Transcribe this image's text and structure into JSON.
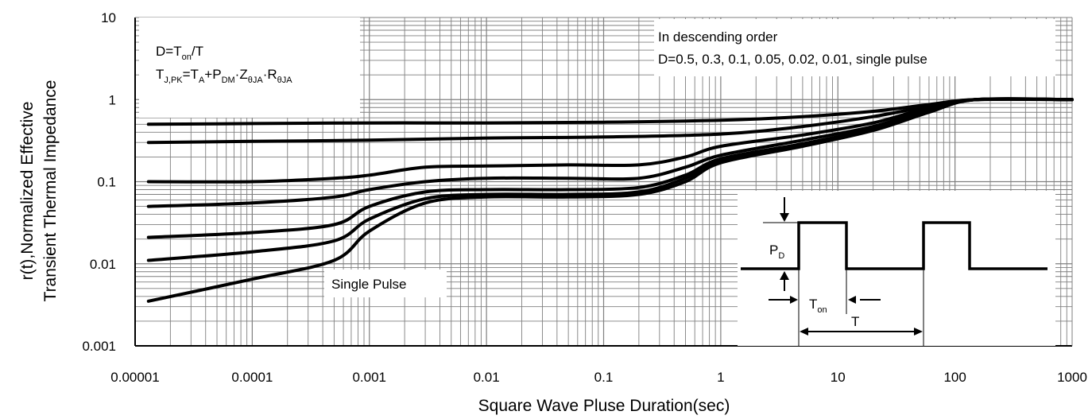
{
  "chart_data": {
    "type": "line",
    "title": "",
    "xlabel": "Square Wave Pluse Duration(sec)",
    "ylabel_lines": [
      "r(t),Normalized Effective",
      "Transient Thermal Impedance"
    ],
    "xscale": "log",
    "yscale": "log",
    "xlim": [
      1e-05,
      1000
    ],
    "ylim": [
      0.001,
      10
    ],
    "x_ticks": [
      "0.00001",
      "0.0001",
      "0.001",
      "0.01",
      "0.1",
      "1",
      "10",
      "100",
      "1000"
    ],
    "y_ticks": [
      "0.001",
      "0.01",
      "0.1",
      "1",
      "10"
    ],
    "grid": true,
    "series": [
      {
        "points": [
          [
            1.3e-05,
            0.5
          ],
          [
            0.0001,
            0.51
          ],
          [
            0.001,
            0.52
          ],
          [
            0.01,
            0.52
          ],
          [
            0.1,
            0.53
          ],
          [
            1,
            0.56
          ],
          [
            5,
            0.62
          ],
          [
            20,
            0.72
          ],
          [
            60,
            0.87
          ],
          [
            150,
            1.0
          ],
          [
            1000,
            1.0
          ]
        ]
      },
      {
        "points": [
          [
            1.3e-05,
            0.3
          ],
          [
            0.0001,
            0.31
          ],
          [
            0.001,
            0.32
          ],
          [
            0.01,
            0.34
          ],
          [
            0.1,
            0.35
          ],
          [
            1,
            0.38
          ],
          [
            5,
            0.47
          ],
          [
            20,
            0.62
          ],
          [
            60,
            0.83
          ],
          [
            150,
            1.0
          ],
          [
            1000,
            1.0
          ]
        ]
      },
      {
        "points": [
          [
            1.3e-05,
            0.1
          ],
          [
            0.0001,
            0.1
          ],
          [
            0.0005,
            0.11
          ],
          [
            0.001,
            0.12
          ],
          [
            0.003,
            0.15
          ],
          [
            0.01,
            0.155
          ],
          [
            0.05,
            0.16
          ],
          [
            0.2,
            0.16
          ],
          [
            0.5,
            0.2
          ],
          [
            1,
            0.27
          ],
          [
            5,
            0.37
          ],
          [
            20,
            0.52
          ],
          [
            60,
            0.8
          ],
          [
            150,
            1.0
          ],
          [
            1000,
            1.0
          ]
        ]
      },
      {
        "points": [
          [
            1.3e-05,
            0.05
          ],
          [
            0.0001,
            0.055
          ],
          [
            0.0005,
            0.065
          ],
          [
            0.001,
            0.08
          ],
          [
            0.003,
            0.1
          ],
          [
            0.01,
            0.11
          ],
          [
            0.05,
            0.11
          ],
          [
            0.2,
            0.11
          ],
          [
            0.5,
            0.15
          ],
          [
            1,
            0.21
          ],
          [
            5,
            0.32
          ],
          [
            20,
            0.47
          ],
          [
            60,
            0.76
          ],
          [
            150,
            1.0
          ],
          [
            1000,
            1.0
          ]
        ]
      },
      {
        "points": [
          [
            1.3e-05,
            0.021
          ],
          [
            0.0001,
            0.024
          ],
          [
            0.0005,
            0.03
          ],
          [
            0.001,
            0.05
          ],
          [
            0.003,
            0.075
          ],
          [
            0.01,
            0.08
          ],
          [
            0.05,
            0.08
          ],
          [
            0.2,
            0.085
          ],
          [
            0.5,
            0.12
          ],
          [
            1,
            0.19
          ],
          [
            5,
            0.29
          ],
          [
            20,
            0.44
          ],
          [
            60,
            0.74
          ],
          [
            150,
            1.0
          ],
          [
            1000,
            1.0
          ]
        ]
      },
      {
        "points": [
          [
            1.3e-05,
            0.011
          ],
          [
            0.0001,
            0.014
          ],
          [
            0.0005,
            0.019
          ],
          [
            0.001,
            0.035
          ],
          [
            0.003,
            0.062
          ],
          [
            0.01,
            0.07
          ],
          [
            0.05,
            0.07
          ],
          [
            0.2,
            0.075
          ],
          [
            0.5,
            0.11
          ],
          [
            1,
            0.18
          ],
          [
            5,
            0.28
          ],
          [
            20,
            0.43
          ],
          [
            60,
            0.72
          ],
          [
            150,
            1.0
          ],
          [
            1000,
            1.0
          ]
        ]
      },
      {
        "points": [
          [
            1.3e-05,
            0.0035
          ],
          [
            0.0001,
            0.0065
          ],
          [
            0.0005,
            0.011
          ],
          [
            0.001,
            0.025
          ],
          [
            0.003,
            0.055
          ],
          [
            0.01,
            0.065
          ],
          [
            0.05,
            0.065
          ],
          [
            0.2,
            0.07
          ],
          [
            0.5,
            0.1
          ],
          [
            1,
            0.17
          ],
          [
            5,
            0.27
          ],
          [
            20,
            0.42
          ],
          [
            60,
            0.7
          ],
          [
            150,
            1.0
          ],
          [
            1000,
            1.0
          ]
        ]
      }
    ],
    "annotations": {
      "formula_line1": "D=T",
      "formula_line1_sub": "on",
      "formula_line1_end": "/T",
      "formula2_t": "T",
      "formula2_t_sub": "J,PK",
      "formula2_eq": "=T",
      "formula2_a": "A",
      "formula2_plus": "+P",
      "formula2_dm": "DM",
      "formula2_dot1": "·Z",
      "formula2_theta": "θJA",
      "formula2_dot2": "·R",
      "formula2_theta2": "θJA",
      "order_line1": "In descending order",
      "order_line2": "D=0.5, 0.3, 0.1, 0.05, 0.02, 0.01, single pulse",
      "single_pulse": "Single Pulse",
      "pd": "P",
      "pd_sub": "D",
      "ton": "T",
      "ton_sub": "on",
      "t": "T"
    },
    "line_color": "#000000",
    "grid_color": "#7f7f7f"
  }
}
